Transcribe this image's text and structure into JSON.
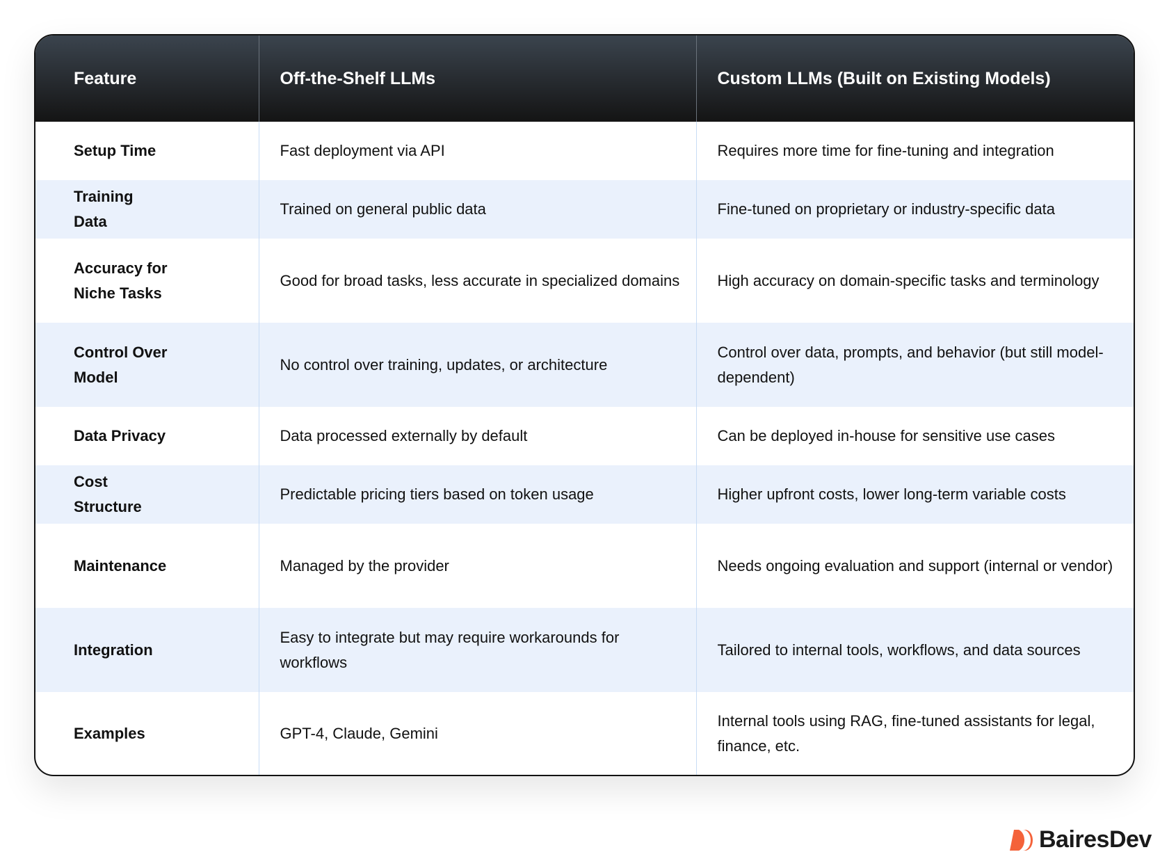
{
  "table": {
    "headers": [
      "Feature",
      "Off-the-Shelf LLMs",
      "Custom LLMs (Built on Existing Models)"
    ],
    "rows": [
      {
        "h": 84,
        "cells": [
          "Setup Time",
          "Fast deployment via API",
          "Requires more time for fine-tuning and integration"
        ]
      },
      {
        "h": 84,
        "cells": [
          "Training Data",
          "Trained on general public data",
          "Fine-tuned on proprietary or industry-specific data"
        ]
      },
      {
        "h": 121,
        "cells": [
          "Accuracy for Niche Tasks",
          "Good for broad tasks, less accurate in specialized domains",
          "High accuracy on domain-specific tasks and terminology"
        ]
      },
      {
        "h": 121,
        "cells": [
          "Control Over Model",
          "No control over training, updates, or architecture",
          "Control over data, prompts, and behavior (but still model-dependent)"
        ]
      },
      {
        "h": 84,
        "cells": [
          "Data Privacy",
          "Data processed externally by default",
          "Can be deployed in-house for sensitive use cases"
        ]
      },
      {
        "h": 84,
        "cells": [
          "Cost Structure",
          "Predictable pricing tiers based on token usage",
          "Higher upfront costs, lower long-term variable costs"
        ]
      },
      {
        "h": 121,
        "cells": [
          "Maintenance",
          "Managed by the provider",
          "Needs ongoing evaluation and support (internal or vendor)"
        ]
      },
      {
        "h": 121,
        "cells": [
          "Integration",
          "Easy to integrate but may require workarounds for workflows",
          "Tailored to internal tools, workflows, and data sources"
        ]
      },
      {
        "h": 119,
        "cells": [
          "Examples",
          "GPT-4, Claude, Gemini",
          "Internal tools using RAG, fine-tuned assistants for legal, finance, etc."
        ]
      }
    ]
  },
  "brand": {
    "name": "BairesDev",
    "color": "#f4623a",
    "icon": "bairesdev-logo-icon"
  }
}
